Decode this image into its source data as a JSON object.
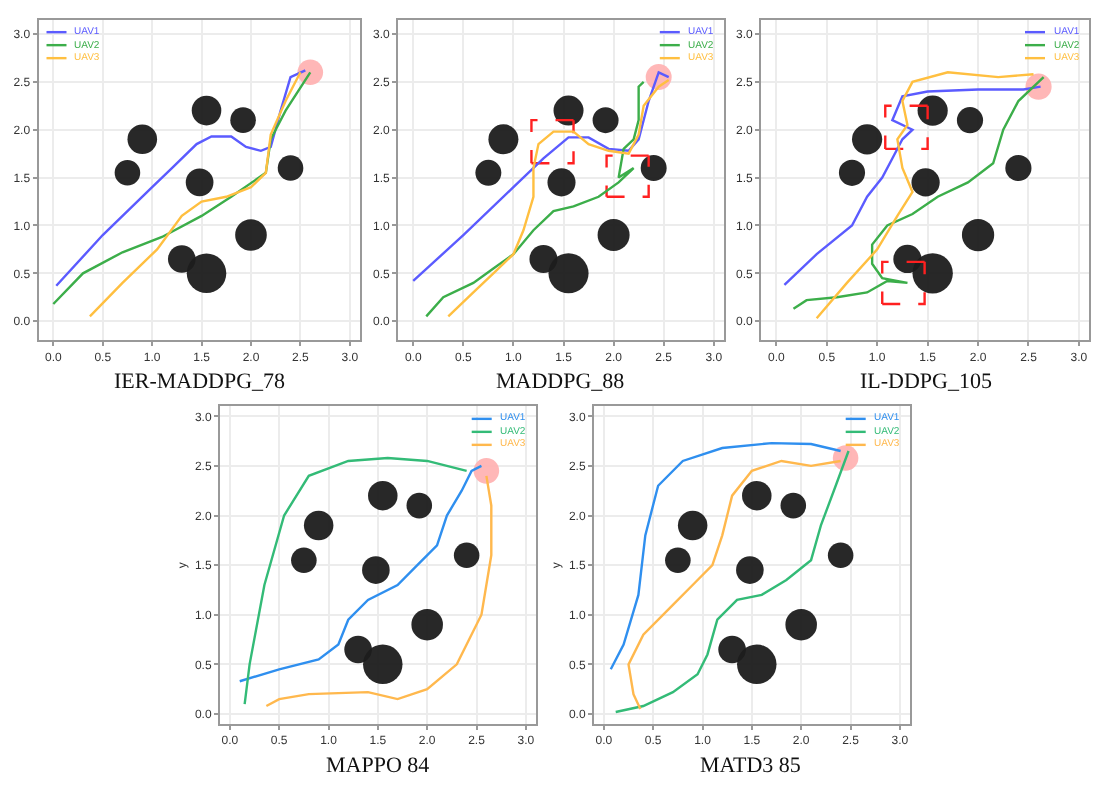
{
  "chart_data": [
    {
      "type": "line",
      "title": "IER-MADDPG_78",
      "xlim": [
        -0.15,
        3.1
      ],
      "ylim": [
        -0.2,
        3.15
      ],
      "xticks": [
        {
          "value": 0,
          "label": "0.0"
        },
        0.5,
        {
          "value": 1,
          "label": "1.0"
        },
        1.5,
        {
          "value": 2,
          "label": "2.0"
        },
        2.5,
        {
          "value": 3,
          "label": "3.0"
        }
      ],
      "yticks": [
        {
          "value": 0,
          "label": "0.0"
        },
        0.5,
        {
          "value": 1,
          "label": "1.0"
        },
        1.5,
        {
          "value": 2,
          "label": "2.0"
        },
        2.5,
        {
          "value": 3,
          "label": "3.0"
        }
      ],
      "grid": true,
      "legend": "top left",
      "series": [
        {
          "type": "bubble",
          "color": "#1c1c1c",
          "x": [
            0.9,
            0.75,
            1.55,
            1.92,
            1.48,
            2.4,
            2.0,
            1.3,
            1.55
          ],
          "values": [
            1.9,
            1.55,
            2.2,
            2.1,
            1.45,
            1.6,
            0.9,
            0.65,
            0.5
          ],
          "sizes": [
            0.56,
            0.42,
            0.56,
            0.42,
            0.49,
            0.42,
            0.64,
            0.49,
            1
          ]
        },
        {
          "type": "bubble",
          "color": "#ffb3b3",
          "x": [
            2.6
          ],
          "values": [
            2.6
          ],
          "sizes": [
            0.42
          ]
        },
        {
          "name": "UAV1",
          "color": "#5b5bff",
          "x": [
            0.03,
            0.5,
            1.0,
            1.2,
            1.45,
            1.6,
            1.8,
            1.95,
            2.1,
            2.2,
            2.3,
            2.4,
            2.55
          ],
          "values": [
            0.37,
            0.9,
            1.4,
            1.6,
            1.85,
            1.93,
            1.93,
            1.82,
            1.78,
            1.82,
            2.2,
            2.55,
            2.62
          ]
        },
        {
          "name": "UAV2",
          "color": "#3cae4a",
          "x": [
            0.0,
            0.3,
            0.7,
            1.1,
            1.5,
            1.8,
            2.15,
            2.2,
            2.35,
            2.6
          ],
          "values": [
            0.18,
            0.5,
            0.72,
            0.88,
            1.1,
            1.3,
            1.55,
            1.9,
            2.2,
            2.6
          ]
        },
        {
          "name": "UAV3",
          "color": "#ffbf40",
          "x": [
            0.37,
            0.7,
            1.05,
            1.3,
            1.5,
            1.75,
            2.0,
            2.15,
            2.2,
            2.35,
            2.5
          ],
          "values": [
            0.05,
            0.4,
            0.75,
            1.1,
            1.25,
            1.3,
            1.4,
            1.55,
            1.95,
            2.3,
            2.6
          ]
        }
      ]
    },
    {
      "type": "line",
      "title": "MADDPG_88",
      "xlim": [
        -0.15,
        3.1
      ],
      "ylim": [
        -0.2,
        3.15
      ],
      "xticks": [
        {
          "value": 0,
          "label": "0.0"
        },
        0.5,
        {
          "value": 1,
          "label": "1.0"
        },
        1.5,
        {
          "value": 2,
          "label": "2.0"
        },
        2.5,
        {
          "value": 3,
          "label": "3.0"
        }
      ],
      "yticks": [
        {
          "value": 0,
          "label": "0.0"
        },
        0.5,
        {
          "value": 1,
          "label": "1.0"
        },
        1.5,
        {
          "value": 2,
          "label": "2.0"
        },
        2.5,
        {
          "value": 3,
          "label": "3.0"
        }
      ],
      "grid": true,
      "legend": "top right",
      "series": [
        {
          "type": "bubble",
          "color": "#1c1c1c",
          "x": [
            0.9,
            0.75,
            1.55,
            1.92,
            1.48,
            2.4,
            2.0,
            1.3,
            1.55
          ],
          "values": [
            1.9,
            1.55,
            2.2,
            2.1,
            1.45,
            1.6,
            0.9,
            0.65,
            0.5
          ],
          "sizes": [
            0.56,
            0.42,
            0.56,
            0.42,
            0.49,
            0.42,
            0.64,
            0.49,
            1
          ]
        },
        {
          "type": "bubble",
          "color": "#ffb3b3",
          "x": [
            2.45
          ],
          "values": [
            2.55
          ],
          "sizes": [
            0.42
          ]
        },
        {
          "color": "#ff2020",
          "line_style": "dashed",
          "x": [
            1.18,
            1.6,
            1.6
          ],
          "values": [
            1.65,
            1.65,
            2.1
          ]
        },
        {
          "color": "#ff2020",
          "line_style": "dashed",
          "x": [
            1.6,
            1.18,
            1.18
          ],
          "values": [
            2.1,
            2.1,
            1.65
          ]
        },
        {
          "color": "#ff2020",
          "line_style": "dashed",
          "x": [
            1.93,
            2.35,
            2.35
          ],
          "values": [
            1.3,
            1.3,
            1.73
          ]
        },
        {
          "color": "#ff2020",
          "line_style": "dashed",
          "x": [
            2.35,
            1.93,
            1.93
          ],
          "values": [
            1.73,
            1.73,
            1.3
          ]
        },
        {
          "name": "UAV1",
          "color": "#5b5bff",
          "x": [
            0.0,
            0.5,
            1.0,
            1.3,
            1.55,
            1.75,
            1.95,
            2.15,
            2.25,
            2.35,
            2.45,
            2.55
          ],
          "values": [
            0.42,
            0.9,
            1.4,
            1.7,
            1.92,
            1.92,
            1.8,
            1.78,
            1.9,
            2.3,
            2.6,
            2.55
          ]
        },
        {
          "name": "UAV2",
          "color": "#3cae4a",
          "x": [
            0.13,
            0.3,
            0.6,
            0.8,
            1.0,
            1.2,
            1.4,
            1.6,
            1.85,
            2.05,
            2.2,
            2.05,
            2.1,
            2.2,
            2.25,
            2.25,
            2.3
          ],
          "values": [
            0.05,
            0.25,
            0.4,
            0.55,
            0.7,
            0.95,
            1.15,
            1.2,
            1.3,
            1.45,
            1.6,
            1.5,
            1.8,
            1.9,
            2.1,
            2.45,
            2.5
          ]
        },
        {
          "name": "UAV3",
          "color": "#ffbf40",
          "x": [
            0.35,
            0.6,
            0.8,
            1.0,
            1.1,
            1.2,
            1.2,
            1.25,
            1.4,
            1.6,
            1.75,
            1.95,
            2.15,
            2.25,
            2.3,
            2.45,
            2.55
          ],
          "values": [
            0.05,
            0.3,
            0.5,
            0.7,
            0.95,
            1.3,
            1.6,
            1.85,
            1.98,
            1.98,
            1.85,
            1.78,
            1.75,
            1.95,
            2.25,
            2.45,
            2.52
          ]
        }
      ]
    },
    {
      "type": "line",
      "title": "IL-DDPG_105",
      "xlim": [
        -0.15,
        3.1
      ],
      "ylim": [
        -0.2,
        3.15
      ],
      "xticks": [
        {
          "value": 0,
          "label": "0.0"
        },
        0.5,
        {
          "value": 1,
          "label": "1.0"
        },
        1.5,
        {
          "value": 2,
          "label": "2.0"
        },
        2.5,
        {
          "value": 3,
          "label": "3.0"
        }
      ],
      "yticks": [
        {
          "value": 0,
          "label": "0.0"
        },
        0.5,
        {
          "value": 1,
          "label": "1.0"
        },
        1.5,
        {
          "value": 2,
          "label": "2.0"
        },
        2.5,
        {
          "value": 3,
          "label": "3.0"
        }
      ],
      "grid": true,
      "legend": "top right",
      "series": [
        {
          "type": "bubble",
          "color": "#1c1c1c",
          "x": [
            0.9,
            0.75,
            1.55,
            1.92,
            1.48,
            2.4,
            2.0,
            1.3,
            1.55
          ],
          "values": [
            1.9,
            1.55,
            2.2,
            2.1,
            1.45,
            1.6,
            0.9,
            0.65,
            0.5
          ],
          "sizes": [
            0.56,
            0.42,
            0.56,
            0.42,
            0.49,
            0.42,
            0.64,
            0.49,
            1
          ]
        },
        {
          "type": "bubble",
          "color": "#ffb3b3",
          "x": [
            2.6
          ],
          "values": [
            2.45
          ],
          "sizes": [
            0.42
          ]
        },
        {
          "color": "#ff2020",
          "line_style": "dashed",
          "x": [
            1.08,
            1.5,
            1.5
          ],
          "values": [
            1.8,
            1.8,
            2.25
          ]
        },
        {
          "color": "#ff2020",
          "line_style": "dashed",
          "x": [
            1.5,
            1.08,
            1.08
          ],
          "values": [
            2.25,
            2.25,
            1.8
          ]
        },
        {
          "color": "#ff2020",
          "line_style": "dashed",
          "x": [
            1.05,
            1.47,
            1.47
          ],
          "values": [
            0.18,
            0.18,
            0.62
          ]
        },
        {
          "color": "#ff2020",
          "line_style": "dashed",
          "x": [
            1.47,
            1.05,
            1.05
          ],
          "values": [
            0.62,
            0.62,
            0.18
          ]
        },
        {
          "name": "UAV1",
          "color": "#5b5bff",
          "x": [
            0.08,
            0.4,
            0.75,
            0.9,
            1.05,
            1.15,
            1.25,
            1.35,
            1.15,
            1.25,
            1.5,
            2.0,
            2.45,
            2.62
          ],
          "values": [
            0.38,
            0.7,
            1.0,
            1.3,
            1.5,
            1.7,
            1.9,
            2.0,
            2.1,
            2.35,
            2.4,
            2.42,
            2.42,
            2.45
          ]
        },
        {
          "name": "UAV2",
          "color": "#3cae4a",
          "x": [
            0.17,
            0.3,
            0.6,
            0.9,
            1.1,
            1.3,
            1.05,
            0.95,
            0.95,
            1.1,
            1.35,
            1.6,
            1.9,
            2.15,
            2.25,
            2.4,
            2.65
          ],
          "values": [
            0.13,
            0.22,
            0.25,
            0.3,
            0.42,
            0.4,
            0.45,
            0.6,
            0.8,
            1.0,
            1.12,
            1.3,
            1.45,
            1.65,
            2.0,
            2.3,
            2.55
          ]
        },
        {
          "name": "UAV3",
          "color": "#ffbf40",
          "x": [
            0.4,
            0.7,
            1.0,
            1.2,
            1.35,
            1.25,
            1.2,
            1.3,
            1.25,
            1.35,
            1.7,
            2.2,
            2.55
          ],
          "values": [
            0.03,
            0.4,
            0.75,
            1.1,
            1.35,
            1.6,
            1.9,
            2.05,
            2.3,
            2.5,
            2.6,
            2.55,
            2.58
          ]
        }
      ]
    },
    {
      "type": "line",
      "title": "MAPPO 84",
      "ylabel": "y",
      "xlim": [
        -0.1,
        3.1
      ],
      "ylim": [
        -0.1,
        3.1
      ],
      "xticks": [
        {
          "value": 0,
          "label": "0.0"
        },
        0.5,
        {
          "value": 1,
          "label": "1.0"
        },
        1.5,
        {
          "value": 2,
          "label": "2.0"
        },
        2.5,
        {
          "value": 3,
          "label": "3.0"
        }
      ],
      "yticks": [
        {
          "value": 0,
          "label": "0.0"
        },
        0.5,
        {
          "value": 1,
          "label": "1.0"
        },
        1.5,
        {
          "value": 2,
          "label": "2.0"
        },
        2.5,
        {
          "value": 3,
          "label": "3.0"
        }
      ],
      "grid": true,
      "legend": "top right",
      "series": [
        {
          "type": "bubble",
          "color": "#1c1c1c",
          "x": [
            0.9,
            0.75,
            1.55,
            1.92,
            1.48,
            2.4,
            2.0,
            1.3,
            1.55
          ],
          "values": [
            1.9,
            1.55,
            2.2,
            2.1,
            1.45,
            1.6,
            0.9,
            0.65,
            0.5
          ],
          "sizes": [
            0.56,
            0.42,
            0.56,
            0.42,
            0.49,
            0.42,
            0.64,
            0.49,
            1
          ]
        },
        {
          "type": "bubble",
          "color": "#ffb3b3",
          "x": [
            2.6
          ],
          "values": [
            2.45
          ],
          "sizes": [
            0.42
          ]
        },
        {
          "name": "UAV1",
          "color": "#2f8fef",
          "x": [
            0.1,
            0.5,
            0.9,
            1.1,
            1.2,
            1.4,
            1.7,
            1.9,
            2.1,
            2.2,
            2.35,
            2.45,
            2.55
          ],
          "values": [
            0.33,
            0.45,
            0.55,
            0.7,
            0.95,
            1.15,
            1.3,
            1.5,
            1.7,
            2.0,
            2.25,
            2.45,
            2.5
          ]
        },
        {
          "name": "UAV2",
          "color": "#33bb77",
          "x": [
            0.15,
            0.2,
            0.35,
            0.55,
            0.8,
            1.2,
            1.6,
            2.0,
            2.4
          ],
          "values": [
            0.1,
            0.5,
            1.3,
            2.0,
            2.4,
            2.55,
            2.58,
            2.55,
            2.45
          ]
        },
        {
          "name": "UAV3",
          "color": "#ffb84d",
          "x": [
            0.37,
            0.5,
            0.8,
            1.4,
            1.7,
            2.0,
            2.3,
            2.55,
            2.65,
            2.65,
            2.6
          ],
          "values": [
            0.08,
            0.15,
            0.2,
            0.22,
            0.15,
            0.25,
            0.5,
            1.0,
            1.6,
            2.1,
            2.4
          ]
        }
      ]
    },
    {
      "type": "line",
      "title": "MATD3 85",
      "ylabel": "y",
      "xlim": [
        -0.1,
        3.1
      ],
      "ylim": [
        -0.1,
        3.1
      ],
      "xticks": [
        {
          "value": 0,
          "label": "0.0"
        },
        0.5,
        {
          "value": 1,
          "label": "1.0"
        },
        1.5,
        {
          "value": 2,
          "label": "2.0"
        },
        2.5,
        {
          "value": 3,
          "label": "3.0"
        }
      ],
      "yticks": [
        {
          "value": 0,
          "label": "0.0"
        },
        0.5,
        {
          "value": 1,
          "label": "1.0"
        },
        1.5,
        {
          "value": 2,
          "label": "2.0"
        },
        2.5,
        {
          "value": 3,
          "label": "3.0"
        }
      ],
      "grid": true,
      "legend": "top right",
      "series": [
        {
          "type": "bubble",
          "color": "#1c1c1c",
          "x": [
            0.9,
            0.75,
            1.55,
            1.92,
            1.48,
            2.4,
            2.0,
            1.3,
            1.55
          ],
          "values": [
            1.9,
            1.55,
            2.2,
            2.1,
            1.45,
            1.6,
            0.9,
            0.65,
            0.5
          ],
          "sizes": [
            0.56,
            0.42,
            0.56,
            0.42,
            0.49,
            0.42,
            0.64,
            0.49,
            1
          ]
        },
        {
          "type": "bubble",
          "color": "#ffb3b3",
          "x": [
            2.45
          ],
          "values": [
            2.58
          ],
          "sizes": [
            0.42
          ]
        },
        {
          "name": "UAV1",
          "color": "#2f8fef",
          "x": [
            0.07,
            0.2,
            0.35,
            0.42,
            0.55,
            0.8,
            1.2,
            1.7,
            2.1,
            2.4
          ],
          "values": [
            0.45,
            0.7,
            1.2,
            1.8,
            2.3,
            2.55,
            2.68,
            2.73,
            2.72,
            2.65
          ]
        },
        {
          "name": "UAV2",
          "color": "#33bb77",
          "x": [
            0.12,
            0.4,
            0.7,
            0.95,
            1.05,
            1.15,
            1.35,
            1.6,
            1.85,
            2.1,
            2.2,
            2.35,
            2.48
          ],
          "values": [
            0.02,
            0.08,
            0.22,
            0.4,
            0.6,
            0.95,
            1.15,
            1.2,
            1.35,
            1.55,
            1.9,
            2.3,
            2.65
          ]
        },
        {
          "name": "UAV3",
          "color": "#ffb84d",
          "x": [
            0.37,
            0.3,
            0.25,
            0.4,
            0.7,
            0.9,
            1.1,
            1.2,
            1.3,
            1.5,
            1.8,
            2.1,
            2.4
          ],
          "values": [
            0.05,
            0.2,
            0.5,
            0.8,
            1.1,
            1.3,
            1.5,
            1.8,
            2.2,
            2.45,
            2.55,
            2.5,
            2.55
          ]
        }
      ]
    }
  ]
}
